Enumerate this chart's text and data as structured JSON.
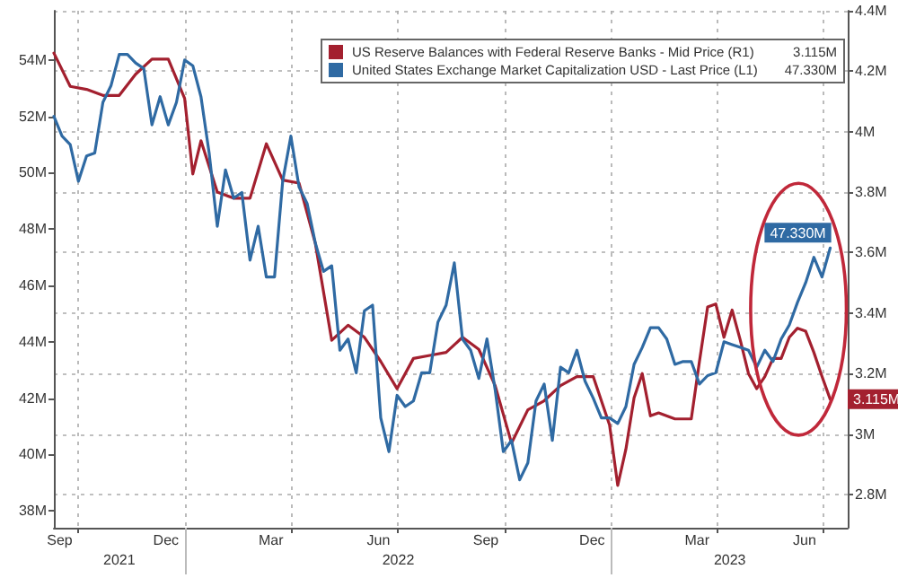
{
  "chart_data": {
    "type": "line",
    "legend": "top right",
    "grid": true,
    "xlim": [
      "2021-09-10",
      "2023-07-22"
    ],
    "xticks": [
      {
        "value": "2021-09-15",
        "label": "Sep"
      },
      {
        "value": "2021-10-01",
        "label": null
      },
      {
        "value": "2021-12-15",
        "label": "Dec"
      },
      {
        "value": "2022-01-01",
        "label": null
      },
      {
        "value": "2022-03-15",
        "label": "Mar"
      },
      {
        "value": "2022-04-01",
        "label": null
      },
      {
        "value": "2022-06-15",
        "label": "Jun"
      },
      {
        "value": "2022-07-01",
        "label": null
      },
      {
        "value": "2022-09-15",
        "label": "Sep"
      },
      {
        "value": "2022-10-01",
        "label": null
      },
      {
        "value": "2022-12-15",
        "label": "Dec"
      },
      {
        "value": "2023-01-01",
        "label": null
      },
      {
        "value": "2023-03-15",
        "label": "Mar"
      },
      {
        "value": "2023-04-01",
        "label": null
      },
      {
        "value": "2023-06-15",
        "label": "Jun"
      },
      {
        "value": "2023-07-01",
        "label": null
      }
    ],
    "x2lim": [
      "2021-09-10",
      "2023-07-22"
    ],
    "x2ticks": [
      {
        "value": "2021-11-05",
        "label": "2021"
      },
      {
        "value": "2022-01-01",
        "label": null
      },
      {
        "value": "2022-07-02",
        "label": "2022"
      },
      {
        "value": "2023-01-01",
        "label": null
      },
      {
        "value": "2023-04-12",
        "label": "2023"
      }
    ],
    "ylim": [
      37.4,
      55.75
    ],
    "yticks": [
      {
        "value": 38,
        "label": "38M"
      },
      {
        "value": 40,
        "label": "40M"
      },
      {
        "value": 42,
        "label": "42M"
      },
      {
        "value": 44,
        "label": "44M"
      },
      {
        "value": 46,
        "label": "46M"
      },
      {
        "value": 48,
        "label": "48M"
      },
      {
        "value": 50,
        "label": "50M"
      },
      {
        "value": 52,
        "label": "52M"
      },
      {
        "value": 54,
        "label": "54M"
      }
    ],
    "y2lim": [
      2.69,
      4.4
    ],
    "y2ticks": [
      {
        "value": 2.8,
        "label": "2.8M"
      },
      {
        "value": 3,
        "label": "3M"
      },
      {
        "value": 3.2,
        "label": "3.2M"
      },
      {
        "value": 3.4,
        "label": "3.4M"
      },
      {
        "value": 3.6,
        "label": "3.6M"
      },
      {
        "value": 3.8,
        "label": "3.8M"
      },
      {
        "value": 4,
        "label": "4M"
      },
      {
        "value": 4.2,
        "label": "4.2M"
      },
      {
        "value": 4.4,
        "label": "4.4M"
      }
    ],
    "series": [
      {
        "name": "US Reserve Balances with Federal Reserve Banks - Mid Price (R1)",
        "color": "#a3202f",
        "axis": "y2",
        "x": [
          "2021-09-10",
          "2021-09-24",
          "2021-10-08",
          "2021-10-22",
          "2021-11-05",
          "2021-11-19",
          "2021-12-03",
          "2021-12-17",
          "2021-12-31",
          "2022-01-07",
          "2022-01-14",
          "2022-01-28",
          "2022-02-11",
          "2022-02-25",
          "2022-03-11",
          "2022-03-25",
          "2022-04-08",
          "2022-04-22",
          "2022-05-06",
          "2022-05-20",
          "2022-06-03",
          "2022-06-17",
          "2022-07-01",
          "2022-07-15",
          "2022-07-29",
          "2022-08-12",
          "2022-08-26",
          "2022-09-09",
          "2022-09-23",
          "2022-10-07",
          "2022-10-21",
          "2022-11-04",
          "2022-11-18",
          "2022-12-02",
          "2022-12-16",
          "2022-12-30",
          "2023-01-06",
          "2023-01-13",
          "2023-01-20",
          "2023-01-27",
          "2023-02-03",
          "2023-02-10",
          "2023-02-24",
          "2023-03-10",
          "2023-03-17",
          "2023-03-24",
          "2023-03-31",
          "2023-04-07",
          "2023-04-14",
          "2023-04-21",
          "2023-04-28",
          "2023-05-05",
          "2023-05-12",
          "2023-05-19",
          "2023-05-26",
          "2023-06-02",
          "2023-06-09",
          "2023-06-16",
          "2023-06-23",
          "2023-06-30",
          "2023-07-07"
        ],
        "values": [
          4.26,
          4.15,
          4.14,
          4.12,
          4.12,
          4.19,
          4.24,
          4.24,
          4.11,
          3.86,
          3.97,
          3.8,
          3.78,
          3.78,
          3.96,
          3.84,
          3.83,
          3.63,
          3.31,
          3.36,
          3.32,
          3.24,
          3.15,
          3.25,
          3.26,
          3.27,
          3.32,
          3.28,
          3.16,
          2.97,
          3.08,
          3.11,
          3.16,
          3.19,
          3.19,
          3.03,
          2.83,
          2.95,
          3.12,
          3.2,
          3.06,
          3.07,
          3.05,
          3.05,
          3.24,
          3.42,
          3.43,
          3.32,
          3.41,
          3.31,
          3.2,
          3.15,
          3.19,
          3.25,
          3.25,
          3.32,
          3.35,
          3.34,
          3.27,
          3.19,
          3.115
        ],
        "value_labels": [
          null,
          null,
          null,
          null,
          null,
          null,
          null,
          null,
          null,
          null,
          null,
          null,
          null,
          null,
          null,
          null,
          null,
          null,
          null,
          null,
          null,
          null,
          null,
          null,
          null,
          null,
          null,
          null,
          null,
          null,
          null,
          null,
          null,
          null,
          null,
          null,
          null,
          null,
          null,
          null,
          null,
          null,
          null,
          null,
          null,
          null,
          null,
          null,
          null,
          null,
          null,
          null,
          null,
          null,
          null,
          null,
          null,
          null,
          null,
          null,
          "3.115M"
        ]
      },
      {
        "name": "United States Exchange Market Capitalization USD - Last Price (L1)",
        "color": "#2f6aa3",
        "axis": "y",
        "x": [
          "2021-09-10",
          "2021-09-17",
          "2021-09-24",
          "2021-10-01",
          "2021-10-08",
          "2021-10-15",
          "2021-10-22",
          "2021-10-29",
          "2021-11-05",
          "2021-11-12",
          "2021-11-19",
          "2021-11-26",
          "2021-12-03",
          "2021-12-10",
          "2021-12-17",
          "2021-12-24",
          "2021-12-31",
          "2022-01-07",
          "2022-01-14",
          "2022-01-21",
          "2022-01-28",
          "2022-02-04",
          "2022-02-11",
          "2022-02-18",
          "2022-02-25",
          "2022-03-04",
          "2022-03-11",
          "2022-03-18",
          "2022-03-25",
          "2022-04-01",
          "2022-04-08",
          "2022-04-15",
          "2022-04-22",
          "2022-04-29",
          "2022-05-06",
          "2022-05-13",
          "2022-05-20",
          "2022-05-27",
          "2022-06-03",
          "2022-06-10",
          "2022-06-17",
          "2022-06-24",
          "2022-07-01",
          "2022-07-08",
          "2022-07-15",
          "2022-07-22",
          "2022-07-29",
          "2022-08-05",
          "2022-08-12",
          "2022-08-19",
          "2022-08-26",
          "2022-09-02",
          "2022-09-09",
          "2022-09-16",
          "2022-09-23",
          "2022-09-30",
          "2022-10-07",
          "2022-10-14",
          "2022-10-21",
          "2022-10-28",
          "2022-11-04",
          "2022-11-11",
          "2022-11-18",
          "2022-11-25",
          "2022-12-02",
          "2022-12-09",
          "2022-12-16",
          "2022-12-23",
          "2022-12-30",
          "2023-01-06",
          "2023-01-13",
          "2023-01-20",
          "2023-01-27",
          "2023-02-03",
          "2023-02-10",
          "2023-02-17",
          "2023-02-24",
          "2023-03-03",
          "2023-03-10",
          "2023-03-17",
          "2023-03-24",
          "2023-03-31",
          "2023-04-07",
          "2023-04-14",
          "2023-04-21",
          "2023-04-28",
          "2023-05-05",
          "2023-05-12",
          "2023-05-19",
          "2023-05-26",
          "2023-06-02",
          "2023-06-09",
          "2023-06-16",
          "2023-06-23",
          "2023-06-30",
          "2023-07-07"
        ],
        "values": [
          52.0,
          51.3,
          51.0,
          49.7,
          50.6,
          50.7,
          52.5,
          53.1,
          54.2,
          54.2,
          53.9,
          53.7,
          51.7,
          52.7,
          51.7,
          52.5,
          54.0,
          53.8,
          52.7,
          50.7,
          48.1,
          50.1,
          49.1,
          49.3,
          46.9,
          48.1,
          46.3,
          46.3,
          49.7,
          51.3,
          49.5,
          48.9,
          47.5,
          46.5,
          46.7,
          43.7,
          44.1,
          42.9,
          45.1,
          45.3,
          41.3,
          40.1,
          42.1,
          41.7,
          41.9,
          42.9,
          42.9,
          44.7,
          45.3,
          46.8,
          44.1,
          43.7,
          42.7,
          44.1,
          42.3,
          40.1,
          40.5,
          39.1,
          39.7,
          41.9,
          42.5,
          40.5,
          43.1,
          42.9,
          43.7,
          42.6,
          42.0,
          41.3,
          41.3,
          41.1,
          41.7,
          43.2,
          43.8,
          44.5,
          44.5,
          44.1,
          43.2,
          43.3,
          43.3,
          42.5,
          42.8,
          42.9,
          44.0,
          43.9,
          43.8,
          43.7,
          43.1,
          43.7,
          43.3,
          44.1,
          44.6,
          45.4,
          46.1,
          47.0,
          46.3,
          47.33
        ],
        "value_labels": [
          null,
          null,
          null,
          null,
          null,
          null,
          null,
          null,
          null,
          null,
          null,
          null,
          null,
          null,
          null,
          null,
          null,
          null,
          null,
          null,
          null,
          null,
          null,
          null,
          null,
          null,
          null,
          null,
          null,
          null,
          null,
          null,
          null,
          null,
          null,
          null,
          null,
          null,
          null,
          null,
          null,
          null,
          null,
          null,
          null,
          null,
          null,
          null,
          null,
          null,
          null,
          null,
          null,
          null,
          null,
          null,
          null,
          null,
          null,
          null,
          null,
          null,
          null,
          null,
          null,
          null,
          null,
          null,
          null,
          null,
          null,
          null,
          null,
          null,
          null,
          null,
          null,
          null,
          null,
          null,
          null,
          null,
          null,
          null,
          null,
          null,
          null,
          null,
          null,
          null,
          null,
          null,
          null,
          null,
          null,
          "47.330M"
        ]
      }
    ]
  }
}
